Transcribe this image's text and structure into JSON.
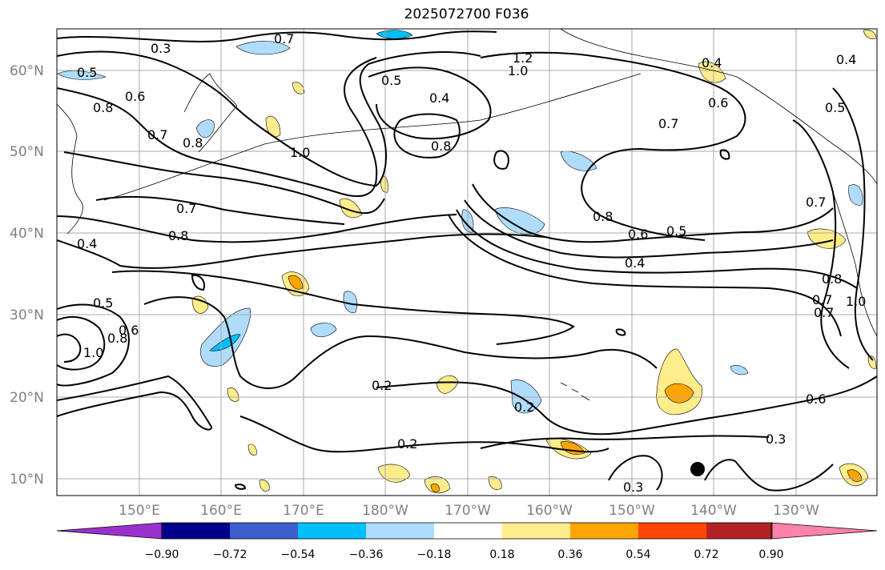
{
  "title": "2025072700 F036",
  "map": {
    "lat_labels": [
      "60°N",
      "50°N",
      "40°N",
      "30°N",
      "20°N",
      "10°N"
    ],
    "lon_labels": [
      "150°E",
      "160°E",
      "170°E",
      "180°W",
      "170°W",
      "160°W",
      "150°W",
      "140°W",
      "130°W"
    ],
    "contour_labels": [
      "0.3",
      "0.7",
      "0.5",
      "0.6",
      "0.8",
      "0.7",
      "1.0",
      "0.8",
      "0.7",
      "0.4",
      "0.5",
      "0.4",
      "0.8",
      "1.2",
      "1.0",
      "0.4",
      "0.6",
      "0.5",
      "0.4",
      "0.7",
      "0.8",
      "0.7",
      "0.8",
      "0.6",
      "0.5",
      "0.4",
      "0.7",
      "0.5",
      "0.8",
      "1.0",
      "0.6",
      "0.2",
      "0.2",
      "0.2",
      "0.3",
      "0.6",
      "0.3",
      "0.8",
      "0.7",
      "1.0"
    ],
    "colors": {
      "ocean": "#ffffff",
      "contour": "#000000",
      "grid": "#a9a9a9",
      "coast": "#000000",
      "marker": "#000000"
    }
  },
  "colorbar": {
    "tick_labels": [
      "−0.90",
      "−0.72",
      "−0.54",
      "−0.36",
      "−0.18",
      "0.18",
      "0.36",
      "0.54",
      "0.72",
      "0.90"
    ],
    "colors": [
      "#9932cc",
      "#00008b",
      "#3a5fcd",
      "#00bfff",
      "#afdcfa",
      "#ffffff",
      "#ffec8b",
      "#ffa500",
      "#ff4500",
      "#b22222",
      "#ff82ab"
    ]
  }
}
